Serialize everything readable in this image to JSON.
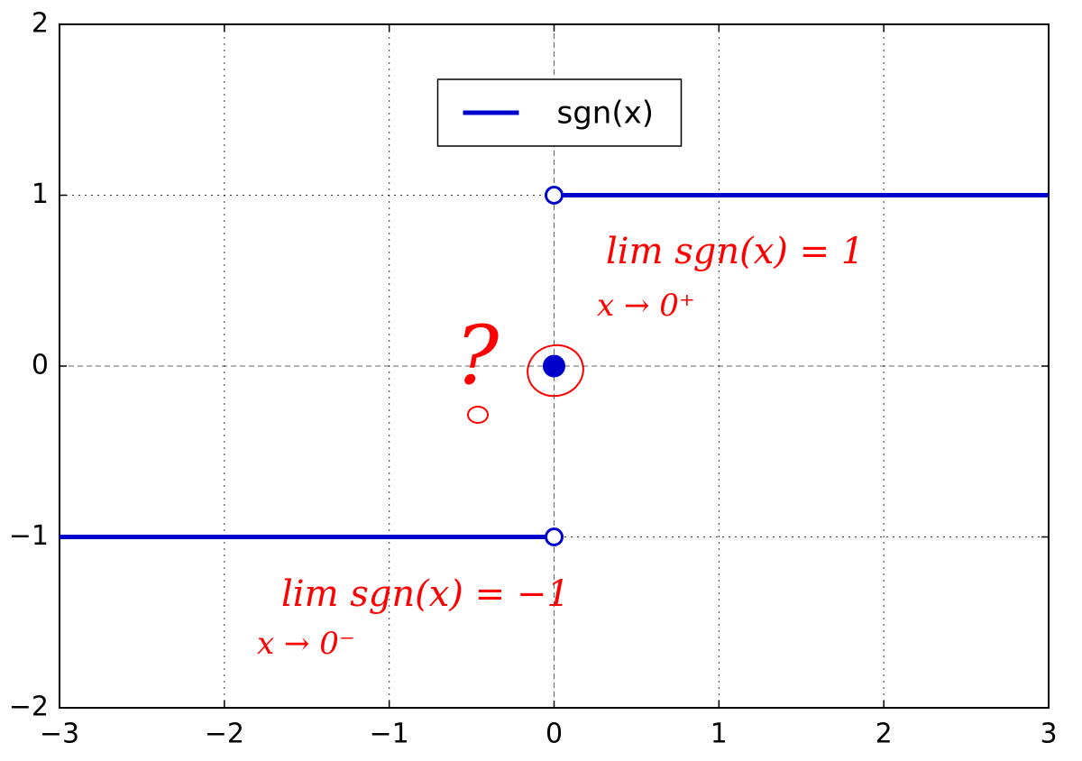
{
  "chart_data": {
    "type": "line",
    "series": [
      {
        "name": "sgn(x)",
        "color": "#0000cc",
        "x": [
          -3,
          0,
          0,
          0,
          3
        ],
        "values": [
          -1,
          -1,
          null,
          1,
          1
        ]
      }
    ],
    "points": {
      "x": [
        0,
        0,
        0
      ],
      "values": [
        1,
        0,
        -1
      ],
      "filled": [
        false,
        true,
        false
      ],
      "color": "#0000cc"
    },
    "xlim": [
      -3,
      3
    ],
    "ylim": [
      -2,
      2
    ],
    "xticks": [
      {
        "value": -3,
        "label": "−3"
      },
      {
        "value": -2,
        "label": "−2"
      },
      {
        "value": -1,
        "label": "−1"
      },
      0,
      1,
      2,
      3
    ],
    "yticks": [
      {
        "value": -2,
        "label": "−2"
      },
      {
        "value": -1,
        "label": "−1"
      },
      0,
      1,
      2
    ],
    "grid": true,
    "legend": "top-center",
    "annotations": [
      "lim sgn(x) = 1",
      "x → 0⁺",
      "lim sgn(x) = −1",
      "x → 0⁻",
      "?"
    ],
    "annotation_color": "#ff0000"
  }
}
